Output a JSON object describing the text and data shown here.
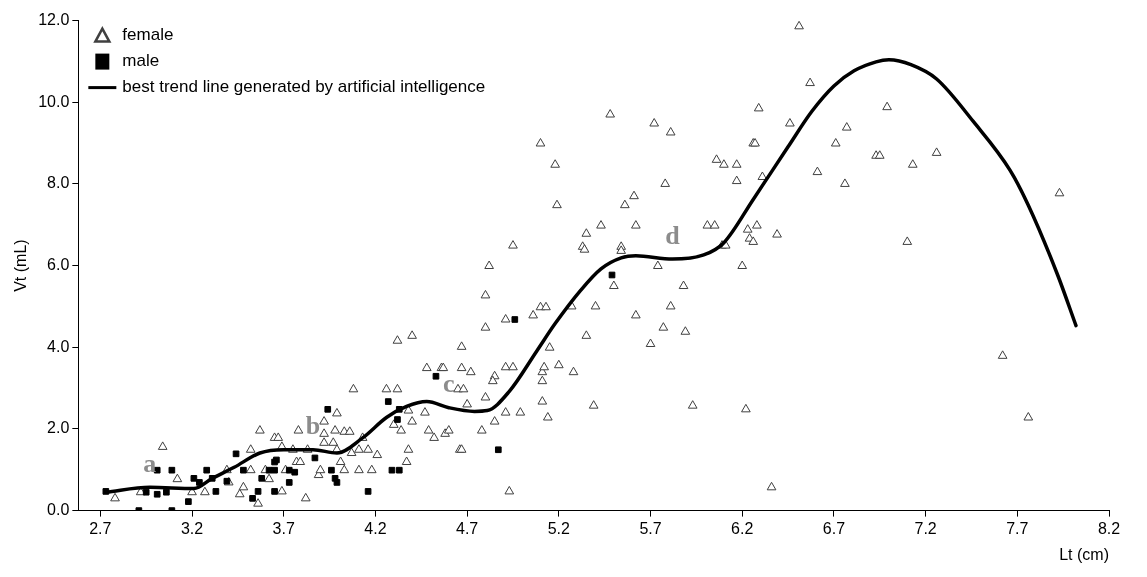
{
  "chart_data": {
    "type": "scatter",
    "xlabel": "Lt (cm)",
    "ylabel": "Vt (mL)",
    "xlim": [
      2.58,
      8.2
    ],
    "xticks": [
      2.7,
      3.2,
      3.7,
      4.2,
      4.7,
      5.2,
      5.7,
      6.2,
      6.7,
      7.2,
      7.7,
      8.2
    ],
    "ylim": [
      0,
      12
    ],
    "yticks": [
      {
        "value": 0,
        "label": "0.0"
      },
      {
        "value": 2,
        "label": "2.0"
      },
      {
        "value": 4,
        "label": "4.0"
      },
      {
        "value": 6,
        "label": "6.0"
      },
      {
        "value": 8,
        "label": "8.0"
      },
      {
        "value": 10,
        "label": "10.0"
      },
      {
        "value": 12,
        "label": "12.0"
      }
    ],
    "grid": false,
    "legend": "top left",
    "annotations": [
      {
        "text": "a",
        "x": 2.97,
        "y": 0.57
      },
      {
        "text": "b",
        "x": 3.86,
        "y": 1.49
      },
      {
        "text": "c",
        "x": 4.6,
        "y": 2.52
      },
      {
        "text": "d",
        "x": 5.82,
        "y": 6.16
      }
    ],
    "series": [
      {
        "name": "female",
        "type": "scatter",
        "marker": "triangle",
        "color": "#404040",
        "x": [
          2.78,
          3.04,
          3.12,
          2.92,
          3.2,
          3.27,
          3.39,
          3.4,
          3.46,
          3.48,
          3.52,
          3.57,
          3.56,
          3.52,
          3.6,
          3.62,
          3.65,
          3.67,
          3.69,
          3.69,
          3.71,
          3.75,
          3.77,
          3.79,
          3.78,
          3.82,
          3.83,
          3.89,
          3.9,
          3.92,
          3.92,
          3.92,
          3.97,
          3.98,
          3.99,
          3.99,
          4.01,
          4.03,
          4.03,
          4.06,
          4.08,
          4.07,
          4.11,
          4.18,
          4.21,
          4.13,
          4.11,
          4.16,
          4.26,
          4.32,
          4.32,
          4.4,
          4.3,
          4.34,
          4.38,
          4.4,
          4.38,
          4.37,
          4.47,
          4.48,
          4.56,
          4.57,
          4.49,
          4.52,
          4.58,
          4.6,
          4.66,
          4.67,
          4.67,
          4.67,
          4.72,
          4.65,
          4.68,
          4.7,
          4.78,
          4.8,
          4.8,
          4.8,
          4.85,
          4.84,
          4.85,
          4.91,
          4.95,
          4.91,
          4.99,
          4.93,
          4.91,
          5.06,
          5.1,
          5.13,
          5.11,
          5.11,
          5.11,
          5.14,
          5.12,
          5.15,
          5.2,
          5.28,
          5.35,
          5.1,
          5.18,
          5.19,
          5.48,
          5.72,
          5.81,
          6.06,
          6.1,
          6.17,
          6.26,
          6.27,
          6.17,
          6.31,
          4.95,
          4.82,
          5.27,
          5.4,
          5.35,
          5.33,
          5.34,
          5.43,
          5.54,
          5.54,
          5.56,
          5.61,
          5.62,
          5.78,
          5.74,
          5.5,
          5.88,
          5.81,
          5.62,
          5.77,
          5.89,
          5.7,
          6.01,
          6.05,
          6.09,
          6.11,
          6.23,
          6.24,
          6.26,
          6.28,
          6.39,
          6.2,
          5.39,
          5.93,
          6.22,
          6.36,
          6.51,
          6.57,
          6.29,
          6.46,
          6.61,
          6.71,
          6.77,
          6.76,
          6.93,
          6.95,
          6.99,
          7.13,
          7.26,
          7.1,
          7.93,
          7.62,
          7.76
        ],
        "values": [
          0.3,
          1.56,
          0.77,
          0.45,
          0.45,
          0.45,
          0.99,
          0.69,
          0.4,
          0.57,
          1.49,
          1.96,
          0.17,
          0.99,
          0.99,
          0.77,
          1.78,
          1.78,
          1.56,
          0.47,
          0.99,
          1.49,
          1.19,
          1.19,
          1.96,
          0.3,
          1.49,
          0.87,
          0.99,
          2.18,
          1.88,
          1.66,
          1.66,
          1.96,
          2.38,
          1.49,
          1.19,
          1.93,
          0.99,
          1.93,
          2.97,
          1.41,
          0.99,
          0.99,
          1.36,
          1.78,
          1.49,
          1.49,
          2.97,
          2.97,
          4.16,
          4.28,
          2.1,
          1.96,
          2.45,
          2.18,
          1.49,
          1.19,
          2.4,
          3.49,
          3.49,
          3.49,
          1.96,
          1.78,
          1.88,
          1.96,
          1.49,
          1.49,
          4.01,
          3.49,
          3.39,
          2.97,
          2.97,
          2.6,
          1.96,
          2.77,
          5.27,
          4.48,
          3.29,
          3.17,
          2.18,
          3.51,
          3.51,
          2.4,
          2.4,
          0.47,
          4.68,
          4.78,
          4.98,
          4.98,
          3.17,
          3.39,
          2.67,
          2.28,
          3.51,
          3.99,
          3.56,
          3.39,
          4.28,
          8.99,
          8.47,
          7.48,
          9.7,
          9.48,
          9.26,
          8.59,
          8.47,
          8.47,
          8.99,
          8.99,
          8.07,
          8.17,
          6.49,
          5.99,
          5,
          5,
          6.78,
          6.46,
          6.39,
          6.98,
          6.46,
          6.36,
          7.48,
          7.7,
          6.98,
          8,
          5.99,
          5.5,
          5.5,
          5,
          4.78,
          4.48,
          4.38,
          4.08,
          6.98,
          6.98,
          6.49,
          6.49,
          6.88,
          6.66,
          6.58,
          6.98,
          6.76,
          5.99,
          2.57,
          2.57,
          2.48,
          0.57,
          11.86,
          10.47,
          9.85,
          9.48,
          8.29,
          8.99,
          9.38,
          8,
          8.69,
          8.69,
          9.88,
          8.47,
          8.76,
          6.58,
          7.77,
          3.79,
          2.28
        ]
      },
      {
        "name": "male",
        "type": "scatter",
        "marker": "square",
        "color": "#000000",
        "x": [
          2.73,
          2.91,
          3.01,
          3.09,
          3.09,
          3.01,
          2.95,
          3.06,
          3.18,
          3.21,
          3.24,
          3.28,
          3.31,
          3.33,
          3.39,
          3.44,
          3.48,
          3.53,
          3.56,
          3.58,
          3.62,
          3.65,
          3.65,
          3.66,
          3.65,
          3.73,
          3.73,
          3.76,
          3.87,
          3.94,
          3.96,
          3.98,
          3.99,
          4.53,
          4.27,
          4.33,
          4.32,
          4.29,
          4.33,
          4.16,
          4.87,
          4.96,
          5.49
        ],
        "values": [
          0.47,
          0,
          0.99,
          0.99,
          0,
          0.4,
          0.45,
          0.45,
          0.22,
          0.79,
          0.69,
          0.99,
          0.79,
          0.47,
          0.72,
          1.39,
          0.99,
          0.3,
          0.47,
          0.79,
          0.99,
          0.99,
          1.19,
          1.24,
          0.47,
          0.99,
          0.69,
          0.94,
          1.29,
          2.48,
          0.99,
          0.79,
          0.69,
          3.29,
          2.67,
          2.48,
          2.23,
          0.99,
          0.99,
          0.47,
          1.49,
          4.68,
          5.77
        ]
      },
      {
        "name": "best trend line generated by artificial intelligence",
        "type": "line",
        "marker": "none",
        "line_style": "solid",
        "color": "#000000",
        "x": [
          2.73,
          2.97,
          3.21,
          3.31,
          3.43,
          3.57,
          3.7,
          3.86,
          3.99,
          4.13,
          4.26,
          4.37,
          4.48,
          4.6,
          4.74,
          4.81,
          4.93,
          5.08,
          5.18,
          5.32,
          5.43,
          5.54,
          5.62,
          5.82,
          5.99,
          6.1,
          6.26,
          6.45,
          6.58,
          6.7,
          6.81,
          6.93,
          7,
          7.12,
          7.26,
          7.46,
          7.66,
          7.76,
          7.92,
          8.02
        ],
        "values": [
          0.45,
          0.57,
          0.54,
          0.79,
          1.06,
          1.41,
          1.49,
          1.49,
          1.41,
          1.78,
          2.28,
          2.55,
          2.67,
          2.52,
          2.43,
          2.45,
          2.92,
          3.91,
          4.58,
          5.4,
          5.92,
          6.19,
          6.24,
          6.16,
          6.26,
          6.56,
          7.62,
          8.91,
          9.78,
          10.4,
          10.77,
          10.99,
          11.04,
          10.92,
          10.57,
          9.53,
          8.34,
          7.48,
          5.77,
          4.53
        ]
      }
    ]
  }
}
